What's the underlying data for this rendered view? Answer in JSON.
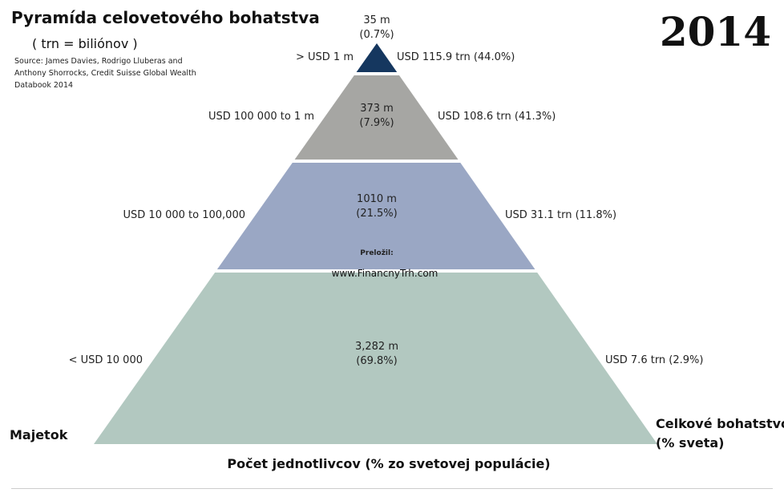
{
  "title": "Pyramída celovetového bohatstva",
  "subtitle": "( trn = biliónov )",
  "source": "Source: James Davies, Rodrigo Lluberas and Anthony Shorrocks, Credit Suisse Global Wealth Databook 2014",
  "year": "2014",
  "watermark": {
    "line1": "Preložil:",
    "line2": "www.FinancnyTrh.com"
  },
  "axis_left": "Majetok",
  "axis_bottom": "Počet jednotlivcov (% zo svetovej populácie)",
  "axis_right_line1": "Celkové bohatstvo",
  "axis_right_line2": "(% sveta)",
  "chart_data": {
    "type": "pyramid",
    "tiers": [
      {
        "wealth_range": "> USD 1 m",
        "adults": "35 m",
        "adults_pct": "(0.7%)",
        "total_wealth": "USD 115.9 trn (44.0%)",
        "adults_m": 35,
        "adults_share": 0.7,
        "wealth_trn": 115.9,
        "wealth_share": 44.0,
        "color": "#15375f"
      },
      {
        "wealth_range": "USD 100 000 to 1 m",
        "adults": "373 m",
        "adults_pct": "(7.9%)",
        "total_wealth": "USD 108.6 trn (41.3%)",
        "adults_m": 373,
        "adults_share": 7.9,
        "wealth_trn": 108.6,
        "wealth_share": 41.3,
        "color": "#a6a6a3"
      },
      {
        "wealth_range": "USD 10 000 to 100,000",
        "adults": "1010 m",
        "adults_pct": "(21.5%)",
        "total_wealth": "USD 31.1 trn (11.8%)",
        "adults_m": 1010,
        "adults_share": 21.5,
        "wealth_trn": 31.1,
        "wealth_share": 11.8,
        "color": "#9aa7c4"
      },
      {
        "wealth_range": "< USD 10 000",
        "adults": "3,282 m",
        "adults_pct": "(69.8%)",
        "total_wealth": "USD 7.6 trn (2.9%)",
        "adults_m": 3282,
        "adults_share": 69.8,
        "wealth_trn": 7.6,
        "wealth_share": 2.9,
        "color": "#b2c8c0"
      }
    ]
  }
}
